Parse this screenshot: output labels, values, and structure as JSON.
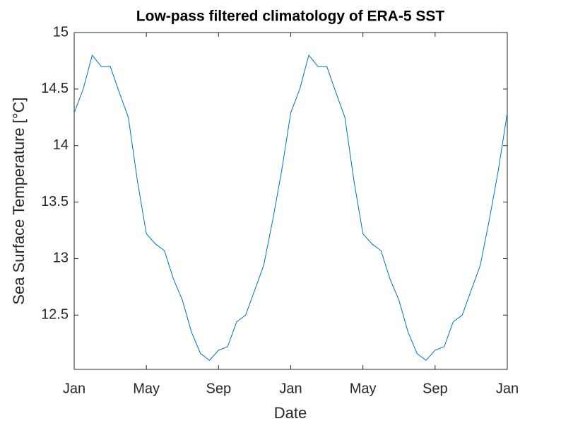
{
  "chart_data": {
    "type": "line",
    "title": "Low-pass filtered climatology of ERA-5 SST",
    "x_label": "Date",
    "y_label": "Sea Surface Temperature [°C]",
    "categories": [
      "Jan",
      null,
      null,
      null,
      null,
      null,
      null,
      null,
      "May",
      null,
      null,
      null,
      null,
      null,
      null,
      null,
      "Sep",
      null,
      null,
      null,
      null,
      null,
      null,
      null,
      "Jan",
      null,
      null,
      null,
      null,
      null,
      null,
      null,
      "May",
      null,
      null,
      null,
      null,
      null,
      null,
      null,
      "Sep",
      null,
      null,
      null,
      null,
      null,
      null,
      null,
      "Jan"
    ],
    "values": [
      14.29,
      14.5,
      14.8,
      14.7,
      14.7,
      14.47,
      14.25,
      13.69,
      13.22,
      13.13,
      13.07,
      12.82,
      12.63,
      12.35,
      12.16,
      12.1,
      12.19,
      12.22,
      12.44,
      12.5,
      12.72,
      12.94,
      13.34,
      13.78,
      14.29,
      14.5,
      14.8,
      14.7,
      14.7,
      14.47,
      14.25,
      13.69,
      13.22,
      13.13,
      13.07,
      12.82,
      12.63,
      12.35,
      12.16,
      12.1,
      12.19,
      12.22,
      12.44,
      12.5,
      12.72,
      12.94,
      13.34,
      13.78,
      14.29
    ],
    "color": "#0072bd",
    "ylim": [
      12.02,
      15
    ],
    "yticks": [
      12.5,
      13,
      13.5,
      14,
      14.5,
      15
    ],
    "grid": false
  }
}
